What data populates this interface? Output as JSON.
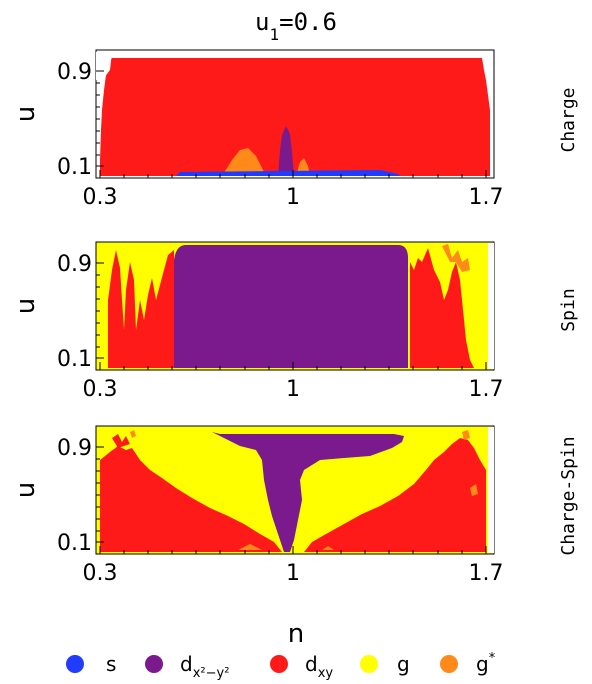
{
  "figure_title": "u",
  "figure_title_sub": "1",
  "figure_title_value": "=0.6",
  "xlabel": "n",
  "ylabel": "u",
  "colors": {
    "s": "#1f3cff",
    "dx2y2": "#7a1a8c",
    "dxy": "#ff1a1a",
    "g": "#ffff00",
    "gstar": "#ff8a1a"
  },
  "legend": [
    {
      "key": "s",
      "base": "s",
      "sub": "",
      "sup": "",
      "color": "#1f3cff"
    },
    {
      "key": "dx2y2",
      "base": "d",
      "sub": "x²−y²",
      "sup": "",
      "color": "#7a1a8c"
    },
    {
      "key": "dxy",
      "base": "d",
      "sub": "xy",
      "sup": "",
      "color": "#ff1a1a"
    },
    {
      "key": "g",
      "base": "g",
      "sub": "",
      "sup": "",
      "color": "#ffff00"
    },
    {
      "key": "gstar",
      "base": "g",
      "sub": "",
      "sup": "*",
      "color": "#ff8a1a"
    }
  ],
  "chart_data": [
    {
      "type": "heatmap",
      "panel_label": "Charge",
      "xlabel": "",
      "ylabel": "u",
      "xlim": [
        0.3,
        1.7
      ],
      "ylim": [
        0.05,
        0.95
      ],
      "xticks": [
        "0.3",
        "1",
        "1.7"
      ],
      "yticks": [
        "0.9",
        "0.1"
      ],
      "regions": [
        {
          "phase": "dxy",
          "n_range": [
            0.33,
            1.67
          ],
          "u_range": [
            0.05,
            0.95
          ]
        },
        {
          "phase": "gstar",
          "n_range": [
            0.78,
            0.88
          ],
          "u_range": [
            0.05,
            0.3
          ]
        },
        {
          "phase": "dx2y2",
          "n_range": [
            0.96,
            1.0
          ],
          "u_range": [
            0.05,
            0.45
          ]
        },
        {
          "phase": "gstar",
          "n_range": [
            1.04,
            1.08
          ],
          "u_range": [
            0.05,
            0.15
          ]
        },
        {
          "phase": "s",
          "n_range": [
            0.55,
            1.45
          ],
          "u_range": [
            0.05,
            0.08
          ]
        }
      ]
    },
    {
      "type": "heatmap",
      "panel_label": "Spin",
      "xlabel": "",
      "ylabel": "u",
      "xlim": [
        0.3,
        1.7
      ],
      "ylim": [
        0.05,
        0.95
      ],
      "xticks": [
        "0.3",
        "1",
        "1.7"
      ],
      "yticks": [
        "0.9",
        "0.1"
      ],
      "regions": [
        {
          "phase": "g",
          "n_range": [
            0.3,
            1.7
          ],
          "u_range": [
            0.05,
            0.95
          ]
        },
        {
          "phase": "dx2y2",
          "n_range": [
            0.6,
            1.4
          ],
          "u_range": [
            0.05,
            0.95
          ]
        },
        {
          "phase": "dxy",
          "n_range": [
            0.38,
            0.6
          ],
          "u_range": [
            0.05,
            0.7
          ]
        },
        {
          "phase": "dxy",
          "n_range": [
            1.4,
            1.6
          ],
          "u_range": [
            0.05,
            0.8
          ]
        }
      ]
    },
    {
      "type": "heatmap",
      "panel_label": "Charge-Spin",
      "xlabel": "n",
      "ylabel": "u",
      "xlim": [
        0.3,
        1.7
      ],
      "ylim": [
        0.05,
        0.95
      ],
      "xticks": [
        "0.3",
        "1",
        "1.7"
      ],
      "yticks": [
        "0.9",
        "0.1"
      ],
      "regions": [
        {
          "phase": "g",
          "n_range": [
            0.3,
            1.7
          ],
          "u_range": [
            0.05,
            0.95
          ]
        },
        {
          "phase": "dxy",
          "n_range": [
            0.3,
            1.7
          ],
          "u_range": [
            0.05,
            0.6
          ]
        },
        {
          "phase": "dx2y2",
          "n_range": [
            0.6,
            1.35
          ],
          "u_range": [
            0.75,
            0.95
          ]
        },
        {
          "phase": "dx2y2",
          "n_range": [
            0.9,
            1.05
          ],
          "u_range": [
            0.05,
            0.95
          ]
        }
      ]
    }
  ]
}
